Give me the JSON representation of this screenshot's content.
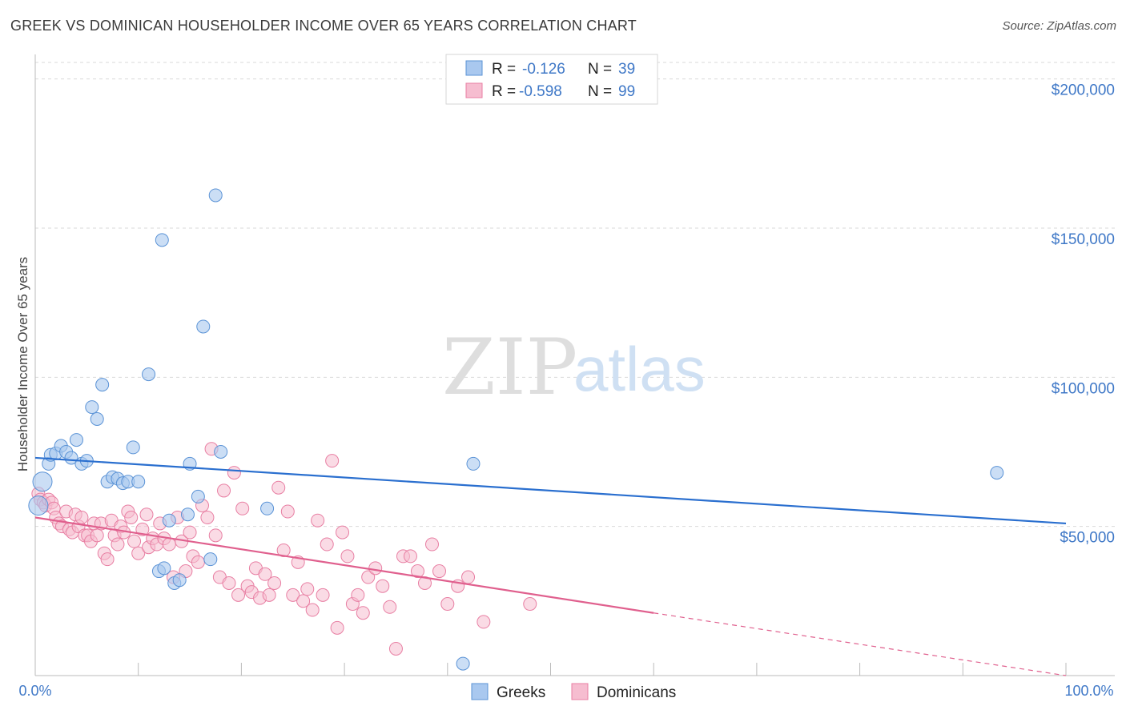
{
  "header": {
    "title": "GREEK VS DOMINICAN HOUSEHOLDER INCOME OVER 65 YEARS CORRELATION CHART",
    "source": "Source: ZipAtlas.com"
  },
  "watermark": {
    "zip": "ZIP",
    "atlas": "atlas"
  },
  "colors": {
    "greeks_fill": "#a9c8ef",
    "greeks_stroke": "#5b93d6",
    "greeks_line": "#2a6fcf",
    "dominicans_fill": "#f6bdd0",
    "dominicans_stroke": "#e87fa3",
    "dominicans_line": "#e0608e",
    "tick_blue": "#3f78c7",
    "grid": "#d9d9d9"
  },
  "legend": {
    "rows": [
      {
        "r_label": "R =",
        "r_value": "-0.126",
        "n_label": "N =",
        "n_value": "39"
      },
      {
        "r_label": "R =",
        "r_value": "-0.598",
        "n_label": "N =",
        "n_value": "99"
      }
    ]
  },
  "chart_data": {
    "type": "scatter",
    "title": "GREEK VS DOMINICAN HOUSEHOLDER INCOME OVER 65 YEARS CORRELATION CHART",
    "xlabel": "",
    "ylabel": "Householder Income Over 65 years",
    "xlim": [
      0,
      100
    ],
    "ylim": [
      0,
      205000
    ],
    "x_tick_labels": [
      "0.0%",
      "100.0%"
    ],
    "y_ticks": [
      50000,
      100000,
      150000,
      200000
    ],
    "y_tick_labels": [
      "$50,000",
      "$100,000",
      "$150,000",
      "$200,000"
    ],
    "grid": true,
    "legend_position": "top-center",
    "series": [
      {
        "name": "Greeks",
        "r": -0.126,
        "n": 39,
        "trend": {
          "x": [
            0,
            100
          ],
          "y": [
            73000,
            51000
          ]
        },
        "points": [
          [
            0.7,
            65000
          ],
          [
            1.3,
            71000
          ],
          [
            1.5,
            74000
          ],
          [
            2.0,
            74500
          ],
          [
            2.5,
            77000
          ],
          [
            3.0,
            75000
          ],
          [
            3.5,
            73000
          ],
          [
            4.0,
            79000
          ],
          [
            4.5,
            71000
          ],
          [
            5.0,
            72000
          ],
          [
            5.5,
            90000
          ],
          [
            6.0,
            86000
          ],
          [
            6.5,
            97500
          ],
          [
            7.0,
            65000
          ],
          [
            7.5,
            66500
          ],
          [
            8.0,
            66000
          ],
          [
            8.5,
            64500
          ],
          [
            9.0,
            65000
          ],
          [
            9.5,
            76500
          ],
          [
            10.0,
            65000
          ],
          [
            11.0,
            101000
          ],
          [
            12.0,
            35000
          ],
          [
            12.5,
            36000
          ],
          [
            12.3,
            146000
          ],
          [
            13.0,
            52000
          ],
          [
            13.5,
            31000
          ],
          [
            14.0,
            32000
          ],
          [
            14.8,
            54000
          ],
          [
            15.0,
            71000
          ],
          [
            15.8,
            60000
          ],
          [
            16.3,
            117000
          ],
          [
            17.0,
            39000
          ],
          [
            17.5,
            161000
          ],
          [
            18.0,
            75000
          ],
          [
            22.5,
            56000
          ],
          [
            41.5,
            4000
          ],
          [
            42.5,
            71000
          ],
          [
            93.3,
            68000
          ],
          [
            0.3,
            57000
          ]
        ]
      },
      {
        "name": "Dominicans",
        "r": -0.598,
        "n": 99,
        "trend": {
          "x": [
            0,
            60
          ],
          "y": [
            53000,
            21000
          ]
        },
        "trend_dashed": {
          "x": [
            60,
            100
          ],
          "y": [
            21000,
            0
          ]
        },
        "points": [
          [
            0.3,
            61000
          ],
          [
            0.5,
            59000
          ],
          [
            0.8,
            58000
          ],
          [
            1.0,
            57000
          ],
          [
            1.3,
            59000
          ],
          [
            1.6,
            58000
          ],
          [
            1.8,
            56000
          ],
          [
            2.0,
            53000
          ],
          [
            2.3,
            51000
          ],
          [
            2.6,
            50000
          ],
          [
            3.0,
            55000
          ],
          [
            3.3,
            49000
          ],
          [
            3.6,
            48000
          ],
          [
            3.9,
            54000
          ],
          [
            4.2,
            50000
          ],
          [
            4.5,
            53000
          ],
          [
            4.8,
            47000
          ],
          [
            5.1,
            47000
          ],
          [
            5.4,
            45000
          ],
          [
            5.7,
            51000
          ],
          [
            6.0,
            47000
          ],
          [
            6.4,
            51000
          ],
          [
            6.7,
            41000
          ],
          [
            7.0,
            39000
          ],
          [
            7.4,
            52000
          ],
          [
            7.7,
            47000
          ],
          [
            8.0,
            44000
          ],
          [
            8.3,
            50000
          ],
          [
            8.6,
            48000
          ],
          [
            9.0,
            55000
          ],
          [
            9.3,
            53000
          ],
          [
            9.6,
            45000
          ],
          [
            10.0,
            41000
          ],
          [
            10.4,
            49000
          ],
          [
            10.8,
            54000
          ],
          [
            11.0,
            43000
          ],
          [
            11.4,
            46000
          ],
          [
            11.8,
            44000
          ],
          [
            12.1,
            51000
          ],
          [
            12.5,
            46000
          ],
          [
            13.0,
            44000
          ],
          [
            13.4,
            33000
          ],
          [
            13.8,
            53000
          ],
          [
            14.2,
            45000
          ],
          [
            14.6,
            35000
          ],
          [
            15.0,
            48000
          ],
          [
            15.3,
            40000
          ],
          [
            15.8,
            38000
          ],
          [
            16.2,
            57000
          ],
          [
            16.7,
            53000
          ],
          [
            17.1,
            76000
          ],
          [
            17.5,
            47000
          ],
          [
            17.9,
            33000
          ],
          [
            18.3,
            62000
          ],
          [
            18.8,
            31000
          ],
          [
            19.3,
            68000
          ],
          [
            19.7,
            27000
          ],
          [
            20.1,
            56000
          ],
          [
            20.6,
            30000
          ],
          [
            21.0,
            28000
          ],
          [
            21.4,
            36000
          ],
          [
            21.8,
            26000
          ],
          [
            22.3,
            34000
          ],
          [
            22.7,
            27000
          ],
          [
            23.2,
            31000
          ],
          [
            23.6,
            63000
          ],
          [
            24.1,
            42000
          ],
          [
            24.5,
            55000
          ],
          [
            25.0,
            27000
          ],
          [
            25.5,
            38000
          ],
          [
            26.0,
            25000
          ],
          [
            26.4,
            29000
          ],
          [
            26.9,
            22000
          ],
          [
            27.4,
            52000
          ],
          [
            27.9,
            27000
          ],
          [
            28.3,
            44000
          ],
          [
            28.8,
            72000
          ],
          [
            29.3,
            16000
          ],
          [
            29.8,
            48000
          ],
          [
            30.3,
            40000
          ],
          [
            30.8,
            24000
          ],
          [
            31.3,
            27000
          ],
          [
            31.8,
            21000
          ],
          [
            32.3,
            33000
          ],
          [
            33.0,
            36000
          ],
          [
            33.7,
            30000
          ],
          [
            34.4,
            23000
          ],
          [
            35.0,
            9000
          ],
          [
            35.7,
            40000
          ],
          [
            36.4,
            40000
          ],
          [
            37.1,
            35000
          ],
          [
            37.8,
            31000
          ],
          [
            38.5,
            44000
          ],
          [
            39.2,
            35000
          ],
          [
            40.0,
            24000
          ],
          [
            41.0,
            30000
          ],
          [
            42.0,
            33000
          ],
          [
            43.5,
            18000
          ],
          [
            48.0,
            24000
          ]
        ]
      }
    ]
  },
  "bottom_legend": {
    "items": [
      "Greeks",
      "Dominicans"
    ]
  }
}
